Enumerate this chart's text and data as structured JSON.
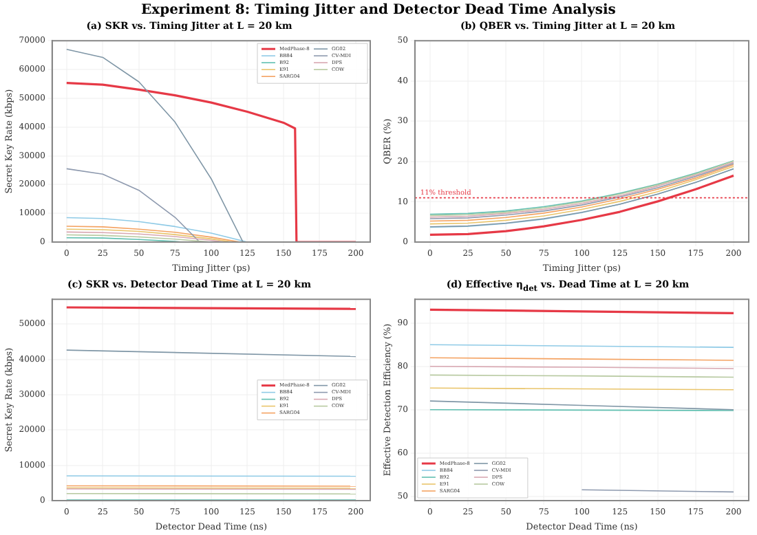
{
  "chart_data": [
    {
      "type": "line",
      "title": "Experiment 8: Timing Jitter and Detector Dead Time Analysis",
      "subtitle": "(a) SKR vs. Timing Jitter at L = 20 km",
      "xlabel": "Timing Jitter (ps)",
      "ylabel": "Secret Key Rate (kbps)",
      "xlim": [
        -10,
        210
      ],
      "xticks": [
        0,
        25,
        50,
        75,
        100,
        125,
        150,
        175,
        200
      ],
      "ylim": [
        0,
        70000
      ],
      "yticks": [
        0,
        10000,
        20000,
        30000,
        40000,
        50000,
        60000,
        70000
      ],
      "grid": true,
      "legend": "top right",
      "series": [
        {
          "name": "MedPhase-8",
          "color": "#e63946",
          "x": [
            0,
            25,
            50,
            75,
            100,
            125,
            150,
            158,
            159,
            175,
            200
          ],
          "values": [
            55300,
            54700,
            53000,
            51000,
            48500,
            45300,
            41500,
            39500,
            0,
            0,
            0
          ]
        },
        {
          "name": "BB84",
          "color": "#8ecae6",
          "x": [
            0,
            25,
            50,
            75,
            100,
            125
          ],
          "values": [
            8500,
            8200,
            7100,
            5400,
            3100,
            0
          ]
        },
        {
          "name": "B92",
          "color": "#5fbfb0",
          "x": [
            0,
            25,
            50,
            75,
            80
          ],
          "values": [
            1500,
            1400,
            900,
            200,
            0
          ]
        },
        {
          "name": "E91",
          "color": "#e9c46a",
          "x": [
            0,
            25,
            50,
            75,
            100,
            115
          ],
          "values": [
            4500,
            4300,
            3700,
            2600,
            1100,
            0
          ]
        },
        {
          "name": "SARG04",
          "color": "#f4a261",
          "x": [
            0,
            25,
            50,
            75,
            100,
            120
          ],
          "values": [
            5500,
            5300,
            4500,
            3400,
            1700,
            0
          ]
        },
        {
          "name": "GG02",
          "color": "#7f96a6",
          "x": [
            0,
            25,
            50,
            75,
            100,
            122
          ],
          "values": [
            67000,
            64200,
            55700,
            41700,
            22000,
            0
          ]
        },
        {
          "name": "CV-MDI",
          "color": "#8d99ae",
          "x": [
            0,
            25,
            50,
            75,
            92
          ],
          "values": [
            25500,
            23600,
            18000,
            8600,
            0
          ]
        },
        {
          "name": "DPS",
          "color": "#d8a7b1",
          "x": [
            0,
            25,
            50,
            75,
            100,
            110
          ],
          "values": [
            3500,
            3300,
            2800,
            1900,
            600,
            0
          ]
        },
        {
          "name": "COW",
          "color": "#b7c9a0",
          "x": [
            0,
            25,
            50,
            75,
            100
          ],
          "values": [
            2500,
            2300,
            1800,
            1000,
            0
          ]
        }
      ]
    },
    {
      "type": "line",
      "subtitle": "(b) QBER vs. Timing Jitter at L = 20 km",
      "xlabel": "Timing Jitter (ps)",
      "ylabel": "QBER (%)",
      "x": [
        0,
        25,
        50,
        75,
        100,
        125,
        150,
        175,
        200
      ],
      "xlim": [
        -10,
        210
      ],
      "xticks": [
        0,
        25,
        50,
        75,
        100,
        125,
        150,
        175,
        200
      ],
      "ylim": [
        0,
        50
      ],
      "yticks": [
        0,
        10,
        20,
        30,
        40,
        50
      ],
      "grid": true,
      "ref_lines": [
        {
          "axis": "y",
          "value": 11,
          "label": "11% threshold",
          "color": "#e63946",
          "line_style": "dotted"
        }
      ],
      "series": [
        {
          "color": "#e63946",
          "values": [
            1.8,
            2.0,
            2.7,
            3.9,
            5.5,
            7.5,
            10.1,
            13.1,
            16.5
          ]
        },
        {
          "color": "#8ecae6",
          "values": [
            3.7,
            3.9,
            4.6,
            5.7,
            7.3,
            9.4,
            11.9,
            14.8,
            18.2
          ]
        },
        {
          "color": "#5fbfb0",
          "values": [
            6.9,
            7.1,
            7.7,
            8.8,
            10.2,
            12.1,
            14.4,
            17.1,
            20.2
          ]
        },
        {
          "color": "#e9c46a",
          "values": [
            4.5,
            4.7,
            5.4,
            6.5,
            8.1,
            10.1,
            12.5,
            15.5,
            18.8
          ]
        },
        {
          "color": "#f4a261",
          "values": [
            5.2,
            5.4,
            6.1,
            7.2,
            8.7,
            10.7,
            13.1,
            15.9,
            19.2
          ]
        },
        {
          "color": "#7f96a6",
          "values": [
            3.8,
            4.0,
            4.7,
            5.8,
            7.4,
            9.4,
            11.9,
            14.8,
            18.2
          ]
        },
        {
          "color": "#8d99ae",
          "values": [
            5.8,
            6.0,
            6.7,
            7.7,
            9.2,
            11.2,
            13.5,
            16.3,
            19.5
          ]
        },
        {
          "color": "#d8a7b1",
          "values": [
            6.2,
            6.4,
            7.1,
            8.1,
            9.6,
            11.5,
            13.9,
            16.6,
            19.8
          ]
        },
        {
          "color": "#b7c9a0",
          "values": [
            6.6,
            6.8,
            7.4,
            8.5,
            10.0,
            11.9,
            14.2,
            16.9,
            20.1
          ]
        }
      ]
    },
    {
      "type": "line",
      "subtitle": "(c) SKR vs. Detector Dead Time at L = 20 km",
      "xlabel": "Detector Dead Time (ns)",
      "ylabel": "Secret Key Rate (kbps)",
      "x": [
        0,
        200
      ],
      "xlim": [
        -10,
        210
      ],
      "xticks": [
        0,
        25,
        50,
        75,
        100,
        125,
        150,
        175,
        200
      ],
      "ylim": [
        0,
        57000
      ],
      "yticks": [
        0,
        10000,
        20000,
        30000,
        40000,
        50000
      ],
      "grid": true,
      "legend": "right",
      "series": [
        {
          "name": "MedPhase-8",
          "color": "#e63946",
          "values": [
            54700,
            54300
          ]
        },
        {
          "name": "BB84",
          "color": "#8ecae6",
          "values": [
            7000,
            6900
          ]
        },
        {
          "name": "B92",
          "color": "#5fbfb0",
          "values": [
            200,
            200
          ]
        },
        {
          "name": "E91",
          "color": "#e9c46a",
          "values": [
            3600,
            3500
          ]
        },
        {
          "name": "SARG04",
          "color": "#f4a261",
          "values": [
            4200,
            4100
          ]
        },
        {
          "name": "GG02",
          "color": "#7f96a6",
          "values": [
            42600,
            40800
          ]
        },
        {
          "name": "CV-MDI",
          "color": "#8d99ae",
          "values": [
            null,
            null
          ]
        },
        {
          "name": "DPS",
          "color": "#d8a7b1",
          "values": [
            3300,
            3200
          ]
        },
        {
          "name": "COW",
          "color": "#b7c9a0",
          "values": [
            2000,
            1900
          ]
        }
      ]
    },
    {
      "type": "line",
      "subtitle": "(d) Effective η$_{det}$ vs. Dead Time at L = 20 km",
      "xlabel": "Detector Dead Time (ns)",
      "ylabel": "Effective Detection Efficiency (%)",
      "x": [
        0,
        100,
        200
      ],
      "xlim": [
        -10,
        210
      ],
      "xticks": [
        0,
        25,
        50,
        75,
        100,
        125,
        150,
        175,
        200
      ],
      "ylim": [
        49,
        95.5
      ],
      "yticks": [
        50,
        60,
        70,
        80,
        90
      ],
      "grid": true,
      "legend": "bottom left",
      "series": [
        {
          "name": "MedPhase-8",
          "color": "#e63946",
          "values": [
            93.1,
            92.7,
            92.3
          ]
        },
        {
          "name": "BB84",
          "color": "#8ecae6",
          "values": [
            85,
            84.7,
            84.4
          ]
        },
        {
          "name": "B92",
          "color": "#5fbfb0",
          "values": [
            70,
            69.9,
            69.8
          ]
        },
        {
          "name": "E91",
          "color": "#e9c46a",
          "values": [
            75,
            74.8,
            74.6
          ]
        },
        {
          "name": "SARG04",
          "color": "#f4a261",
          "values": [
            82,
            81.7,
            81.4
          ]
        },
        {
          "name": "GG02",
          "color": "#7f96a6",
          "values": [
            72,
            71,
            70
          ]
        },
        {
          "name": "CV-MDI",
          "color": "#8d99ae",
          "values": [
            null,
            51.5,
            51
          ]
        },
        {
          "name": "DPS",
          "color": "#d8a7b1",
          "values": [
            80,
            79.8,
            79.5
          ]
        },
        {
          "name": "COW",
          "color": "#b7c9a0",
          "values": [
            78,
            77.8,
            77.5
          ]
        }
      ]
    }
  ]
}
